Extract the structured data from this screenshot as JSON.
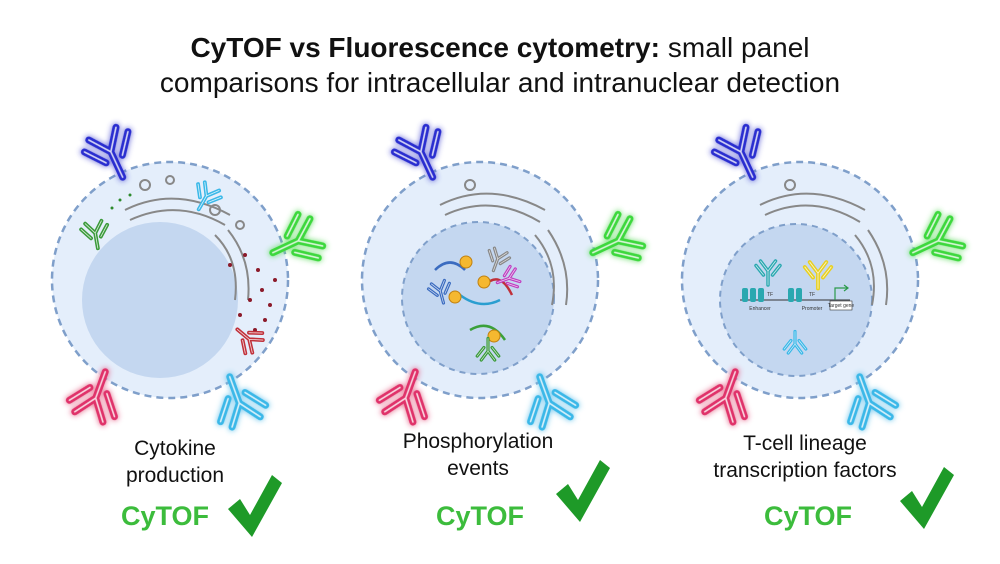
{
  "header": {
    "title_bold": "CyTOF vs Fluorescence cytometry:",
    "title_rest": "small panel",
    "title_line2": "comparisons for intracellular and intranuclear detection"
  },
  "panels": [
    {
      "label": [
        "Cytokine",
        "production"
      ],
      "method": "CyTOF"
    },
    {
      "label": [
        "Phosphorylation",
        "events"
      ],
      "method": "CyTOF"
    },
    {
      "label": [
        "T-cell lineage",
        "transcription factors"
      ],
      "method": "CyTOF",
      "diagram_labels": [
        "TF",
        "TF",
        "Enhancer",
        "Promoter",
        "Target gene"
      ]
    }
  ]
}
